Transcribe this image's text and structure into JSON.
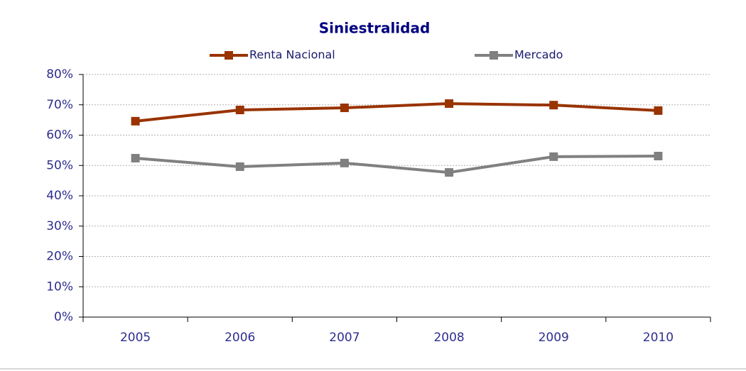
{
  "chart_data": {
    "type": "line",
    "title": "Siniestralidad",
    "categories": [
      "2005",
      "2006",
      "2007",
      "2008",
      "2009",
      "2010"
    ],
    "series": [
      {
        "name": "Renta Nacional",
        "color": "#993300",
        "values": [
          64.6,
          68.3,
          69.0,
          70.4,
          69.9,
          68.1
        ]
      },
      {
        "name": "Mercado",
        "color": "#808080",
        "values": [
          52.4,
          49.6,
          50.8,
          47.7,
          52.9,
          53.1
        ]
      }
    ],
    "ylim": [
      0,
      80
    ],
    "yticks": [
      {
        "value": 0,
        "label": "0%"
      },
      {
        "value": 10,
        "label": "10%"
      },
      {
        "value": 20,
        "label": "20%"
      },
      {
        "value": 30,
        "label": "30%"
      },
      {
        "value": 40,
        "label": "40%"
      },
      {
        "value": 50,
        "label": "50%"
      },
      {
        "value": 60,
        "label": "60%"
      },
      {
        "value": 70,
        "label": "70%"
      },
      {
        "value": 80,
        "label": "80%"
      }
    ],
    "grid": true,
    "legend": "top"
  }
}
